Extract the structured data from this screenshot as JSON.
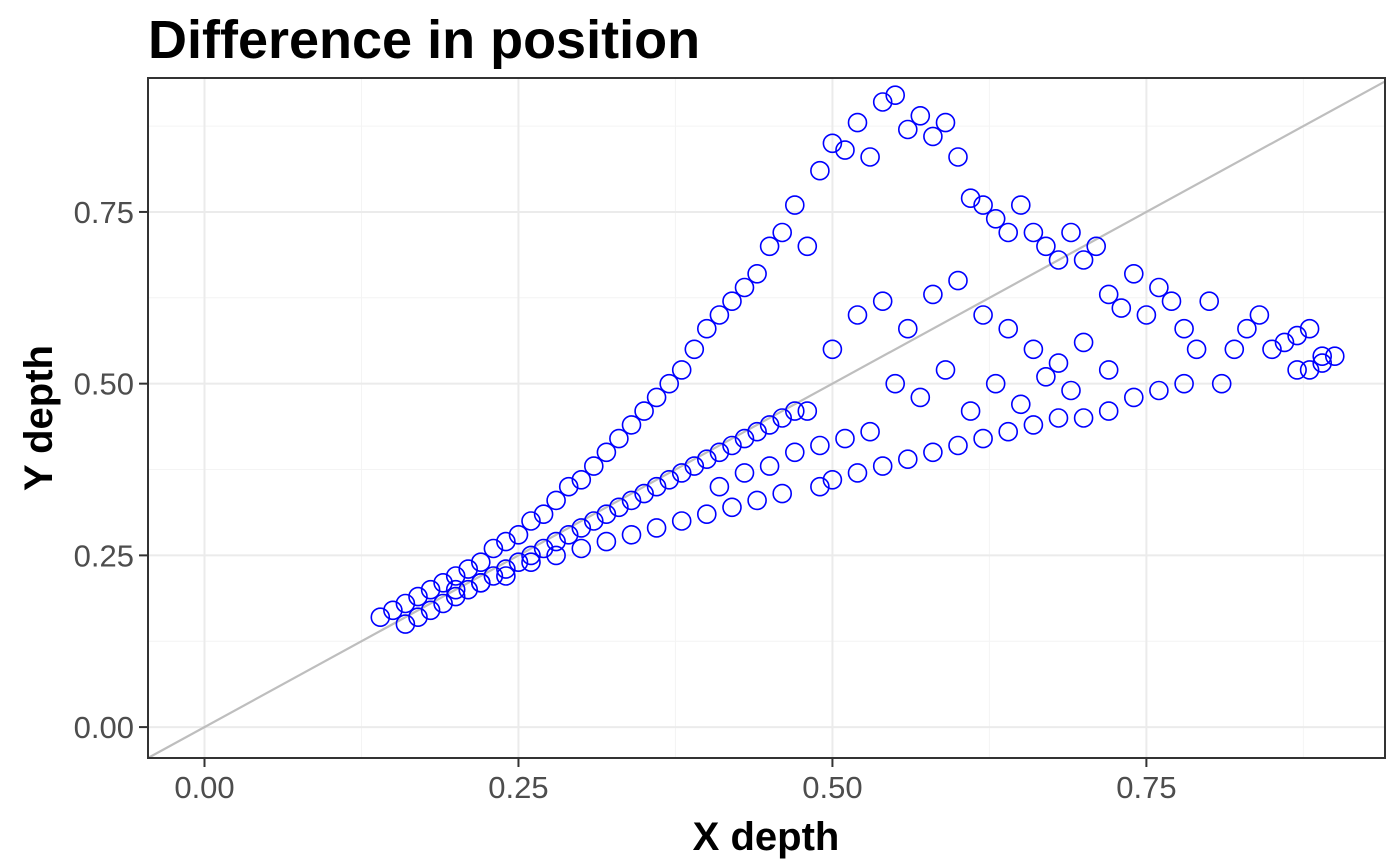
{
  "chart_data": {
    "type": "scatter",
    "title": "Difference in position",
    "xlabel": "X depth",
    "ylabel": "Y depth",
    "xlim": [
      -0.045,
      0.94
    ],
    "ylim": [
      -0.045,
      0.945
    ],
    "x_ticks": [
      0.0,
      0.25,
      0.5,
      0.75
    ],
    "x_tick_labels": [
      "0.00",
      "0.25",
      "0.50",
      "0.75"
    ],
    "y_ticks": [
      0.0,
      0.25,
      0.5,
      0.75
    ],
    "y_tick_labels": [
      "0.00",
      "0.25",
      "0.50",
      "0.75"
    ],
    "grid": true,
    "reference_line": {
      "slope": 1,
      "intercept": 0,
      "color": "#bebebe"
    },
    "point_color": "#0000ff",
    "marker": "open-circle",
    "series": [
      {
        "points": [
          [
            0.14,
            0.16
          ],
          [
            0.15,
            0.17
          ],
          [
            0.16,
            0.15
          ],
          [
            0.16,
            0.18
          ],
          [
            0.17,
            0.16
          ],
          [
            0.17,
            0.19
          ],
          [
            0.18,
            0.17
          ],
          [
            0.18,
            0.2
          ],
          [
            0.19,
            0.18
          ],
          [
            0.19,
            0.21
          ],
          [
            0.2,
            0.19
          ],
          [
            0.2,
            0.22
          ],
          [
            0.21,
            0.2
          ],
          [
            0.21,
            0.23
          ],
          [
            0.22,
            0.21
          ],
          [
            0.22,
            0.24
          ],
          [
            0.23,
            0.22
          ],
          [
            0.23,
            0.26
          ],
          [
            0.24,
            0.23
          ],
          [
            0.24,
            0.27
          ],
          [
            0.25,
            0.24
          ],
          [
            0.25,
            0.28
          ],
          [
            0.26,
            0.25
          ],
          [
            0.26,
            0.3
          ],
          [
            0.27,
            0.26
          ],
          [
            0.27,
            0.31
          ],
          [
            0.28,
            0.27
          ],
          [
            0.28,
            0.33
          ],
          [
            0.29,
            0.28
          ],
          [
            0.29,
            0.35
          ],
          [
            0.3,
            0.29
          ],
          [
            0.3,
            0.36
          ],
          [
            0.31,
            0.3
          ],
          [
            0.31,
            0.38
          ],
          [
            0.32,
            0.31
          ],
          [
            0.32,
            0.4
          ],
          [
            0.33,
            0.32
          ],
          [
            0.33,
            0.42
          ],
          [
            0.34,
            0.33
          ],
          [
            0.34,
            0.44
          ],
          [
            0.35,
            0.34
          ],
          [
            0.35,
            0.46
          ],
          [
            0.36,
            0.35
          ],
          [
            0.36,
            0.48
          ],
          [
            0.37,
            0.36
          ],
          [
            0.37,
            0.5
          ],
          [
            0.38,
            0.37
          ],
          [
            0.38,
            0.52
          ],
          [
            0.39,
            0.38
          ],
          [
            0.39,
            0.55
          ],
          [
            0.4,
            0.39
          ],
          [
            0.4,
            0.58
          ],
          [
            0.41,
            0.4
          ],
          [
            0.41,
            0.6
          ],
          [
            0.42,
            0.41
          ],
          [
            0.42,
            0.62
          ],
          [
            0.43,
            0.42
          ],
          [
            0.43,
            0.64
          ],
          [
            0.44,
            0.43
          ],
          [
            0.44,
            0.66
          ],
          [
            0.45,
            0.44
          ],
          [
            0.45,
            0.7
          ],
          [
            0.46,
            0.72
          ],
          [
            0.47,
            0.76
          ],
          [
            0.48,
            0.7
          ],
          [
            0.49,
            0.81
          ],
          [
            0.5,
            0.85
          ],
          [
            0.51,
            0.84
          ],
          [
            0.52,
            0.88
          ],
          [
            0.53,
            0.83
          ],
          [
            0.54,
            0.91
          ],
          [
            0.55,
            0.92
          ],
          [
            0.56,
            0.87
          ],
          [
            0.57,
            0.89
          ],
          [
            0.58,
            0.86
          ],
          [
            0.59,
            0.88
          ],
          [
            0.6,
            0.83
          ],
          [
            0.61,
            0.77
          ],
          [
            0.62,
            0.76
          ],
          [
            0.63,
            0.74
          ],
          [
            0.64,
            0.72
          ],
          [
            0.65,
            0.76
          ],
          [
            0.66,
            0.72
          ],
          [
            0.67,
            0.7
          ],
          [
            0.68,
            0.68
          ],
          [
            0.69,
            0.72
          ],
          [
            0.7,
            0.68
          ],
          [
            0.71,
            0.7
          ],
          [
            0.72,
            0.63
          ],
          [
            0.73,
            0.61
          ],
          [
            0.74,
            0.66
          ],
          [
            0.75,
            0.6
          ],
          [
            0.76,
            0.64
          ],
          [
            0.77,
            0.62
          ],
          [
            0.78,
            0.58
          ],
          [
            0.79,
            0.55
          ],
          [
            0.8,
            0.62
          ],
          [
            0.81,
            0.5
          ],
          [
            0.82,
            0.55
          ],
          [
            0.83,
            0.58
          ],
          [
            0.84,
            0.6
          ],
          [
            0.85,
            0.55
          ],
          [
            0.86,
            0.56
          ],
          [
            0.87,
            0.52
          ],
          [
            0.88,
            0.58
          ],
          [
            0.89,
            0.54
          ],
          [
            0.89,
            0.53
          ],
          [
            0.9,
            0.54
          ],
          [
            0.88,
            0.52
          ],
          [
            0.87,
            0.57
          ],
          [
            0.46,
            0.45
          ],
          [
            0.47,
            0.46
          ],
          [
            0.48,
            0.46
          ],
          [
            0.49,
            0.35
          ],
          [
            0.5,
            0.36
          ],
          [
            0.52,
            0.37
          ],
          [
            0.54,
            0.38
          ],
          [
            0.56,
            0.39
          ],
          [
            0.58,
            0.4
          ],
          [
            0.6,
            0.41
          ],
          [
            0.62,
            0.42
          ],
          [
            0.64,
            0.43
          ],
          [
            0.66,
            0.44
          ],
          [
            0.68,
            0.45
          ],
          [
            0.7,
            0.45
          ],
          [
            0.72,
            0.46
          ],
          [
            0.74,
            0.48
          ],
          [
            0.76,
            0.49
          ],
          [
            0.78,
            0.5
          ],
          [
            0.46,
            0.34
          ],
          [
            0.44,
            0.33
          ],
          [
            0.42,
            0.32
          ],
          [
            0.4,
            0.31
          ],
          [
            0.38,
            0.3
          ],
          [
            0.36,
            0.29
          ],
          [
            0.34,
            0.28
          ],
          [
            0.32,
            0.27
          ],
          [
            0.3,
            0.26
          ],
          [
            0.28,
            0.25
          ],
          [
            0.26,
            0.24
          ],
          [
            0.24,
            0.22
          ],
          [
            0.22,
            0.21
          ],
          [
            0.2,
            0.2
          ],
          [
            0.5,
            0.55
          ],
          [
            0.52,
            0.6
          ],
          [
            0.54,
            0.62
          ],
          [
            0.56,
            0.58
          ],
          [
            0.58,
            0.63
          ],
          [
            0.6,
            0.65
          ],
          [
            0.62,
            0.6
          ],
          [
            0.64,
            0.58
          ],
          [
            0.66,
            0.55
          ],
          [
            0.68,
            0.53
          ],
          [
            0.7,
            0.56
          ],
          [
            0.72,
            0.52
          ],
          [
            0.55,
            0.5
          ],
          [
            0.57,
            0.48
          ],
          [
            0.59,
            0.52
          ],
          [
            0.61,
            0.46
          ],
          [
            0.63,
            0.5
          ],
          [
            0.65,
            0.47
          ],
          [
            0.67,
            0.51
          ],
          [
            0.69,
            0.49
          ],
          [
            0.53,
            0.43
          ],
          [
            0.51,
            0.42
          ],
          [
            0.49,
            0.41
          ],
          [
            0.47,
            0.4
          ],
          [
            0.45,
            0.38
          ],
          [
            0.43,
            0.37
          ],
          [
            0.41,
            0.35
          ]
        ]
      }
    ]
  }
}
